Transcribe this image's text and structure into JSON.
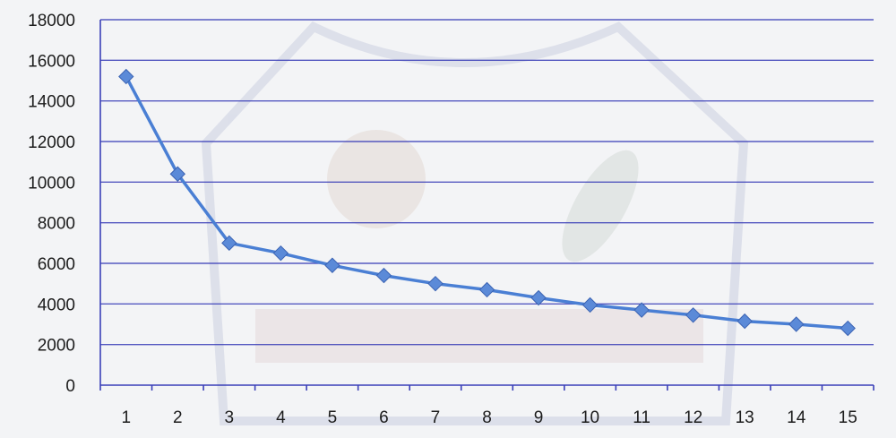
{
  "chart_data": {
    "type": "line",
    "title": "",
    "xlabel": "",
    "ylabel": "",
    "categories": [
      "1",
      "2",
      "3",
      "4",
      "5",
      "6",
      "7",
      "8",
      "9",
      "10",
      "11",
      "12",
      "13",
      "14",
      "15"
    ],
    "series": [
      {
        "values": [
          15200,
          10400,
          7000,
          6500,
          5900,
          5400,
          5000,
          4700,
          4300,
          3950,
          3700,
          3450,
          3150,
          3000,
          2800
        ],
        "color": "#4a7fd4",
        "marker": "diamond"
      }
    ],
    "ylim": [
      0,
      18000
    ],
    "yticks": [
      0,
      2000,
      4000,
      6000,
      8000,
      10000,
      12000,
      14000,
      16000,
      18000
    ],
    "grid": true,
    "legend": "none"
  },
  "colors": {
    "gridline": "#3a3fb8",
    "line": "#4a7fd4",
    "marker": "#5b8ad8"
  }
}
